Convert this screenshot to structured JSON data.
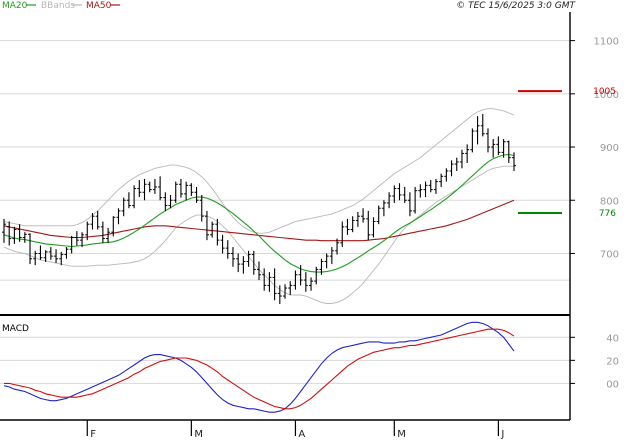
{
  "legend": [
    {
      "label": "MA20",
      "color": "#1e9e1e"
    },
    {
      "label": "BBands",
      "color": "#b8b8b8"
    },
    {
      "label": "MA50",
      "color": "#a31818"
    }
  ],
  "copyright": "© TEC 15/6/2025 3:0 GMT",
  "chart_data": [
    {
      "type": "ohlc",
      "title": "",
      "y_ticks": [
        "1100",
        "1000",
        "900",
        "800",
        "700"
      ],
      "y_tick_values": [
        1100,
        1000,
        900,
        800,
        700
      ],
      "ylim": [
        590,
        1150
      ],
      "x_labels": [
        "F",
        "M",
        "A",
        "M",
        "J"
      ],
      "x_label_index": [
        16,
        36,
        56,
        75,
        95
      ],
      "grid": true,
      "reference_lines": [
        {
          "name": "resistance",
          "value": 1005,
          "label": "1005",
          "color": "#cc0000"
        },
        {
          "name": "support",
          "value": 776,
          "label": "776",
          "color": "#008800"
        }
      ],
      "bars": [
        [
          740,
          765,
          720,
          755
        ],
        [
          750,
          760,
          715,
          728
        ],
        [
          728,
          750,
          718,
          745
        ],
        [
          745,
          755,
          722,
          730
        ],
        [
          730,
          740,
          720,
          736
        ],
        [
          736,
          738,
          680,
          690
        ],
        [
          690,
          705,
          678,
          700
        ],
        [
          700,
          715,
          688,
          692
        ],
        [
          692,
          706,
          684,
          703
        ],
        [
          703,
          712,
          688,
          695
        ],
        [
          695,
          708,
          682,
          690
        ],
        [
          690,
          703,
          678,
          698
        ],
        [
          698,
          712,
          690,
          708
        ],
        [
          708,
          733,
          700,
          730
        ],
        [
          730,
          742,
          715,
          725
        ],
        [
          725,
          740,
          712,
          735
        ],
        [
          735,
          760,
          725,
          755
        ],
        [
          755,
          776,
          745,
          770
        ],
        [
          770,
          780,
          745,
          750
        ],
        [
          750,
          760,
          720,
          728
        ],
        [
          728,
          748,
          720,
          740
        ],
        [
          740,
          770,
          732,
          768
        ],
        [
          768,
          785,
          755,
          780
        ],
        [
          780,
          805,
          770,
          800
        ],
        [
          800,
          815,
          785,
          790
        ],
        [
          790,
          828,
          785,
          822
        ],
        [
          822,
          838,
          806,
          815
        ],
        [
          815,
          840,
          800,
          830
        ],
        [
          830,
          835,
          815,
          820
        ],
        [
          820,
          840,
          812,
          825
        ],
        [
          825,
          845,
          800,
          805
        ],
        [
          805,
          815,
          780,
          790
        ],
        [
          790,
          810,
          785,
          800
        ],
        [
          800,
          835,
          795,
          830
        ],
        [
          830,
          840,
          805,
          812
        ],
        [
          812,
          835,
          800,
          828
        ],
        [
          828,
          832,
          808,
          815
        ],
        [
          815,
          825,
          795,
          800
        ],
        [
          800,
          810,
          760,
          770
        ],
        [
          770,
          780,
          725,
          735
        ],
        [
          735,
          760,
          730,
          755
        ],
        [
          755,
          765,
          715,
          725
        ],
        [
          725,
          735,
          700,
          710
        ],
        [
          710,
          725,
          690,
          700
        ],
        [
          700,
          712,
          675,
          690
        ],
        [
          690,
          700,
          665,
          680
        ],
        [
          680,
          695,
          662,
          685
        ],
        [
          685,
          705,
          675,
          698
        ],
        [
          698,
          705,
          660,
          670
        ],
        [
          670,
          685,
          650,
          660
        ],
        [
          660,
          672,
          630,
          640
        ],
        [
          640,
          665,
          628,
          655
        ],
        [
          655,
          672,
          612,
          625
        ],
        [
          625,
          640,
          605,
          620
        ],
        [
          620,
          642,
          615,
          635
        ],
        [
          635,
          648,
          622,
          640
        ],
        [
          640,
          668,
          632,
          660
        ],
        [
          660,
          678,
          640,
          650
        ],
        [
          650,
          665,
          628,
          640
        ],
        [
          640,
          655,
          630,
          648
        ],
        [
          648,
          675,
          642,
          670
        ],
        [
          670,
          690,
          660,
          685
        ],
        [
          685,
          700,
          672,
          695
        ],
        [
          695,
          712,
          680,
          705
        ],
        [
          705,
          728,
          698,
          720
        ],
        [
          720,
          760,
          712,
          750
        ],
        [
          750,
          765,
          735,
          745
        ],
        [
          745,
          770,
          740,
          762
        ],
        [
          762,
          778,
          750,
          770
        ],
        [
          770,
          785,
          758,
          765
        ],
        [
          765,
          780,
          725,
          735
        ],
        [
          735,
          768,
          730,
          760
        ],
        [
          760,
          790,
          755,
          785
        ],
        [
          785,
          800,
          770,
          795
        ],
        [
          795,
          815,
          785,
          808
        ],
        [
          808,
          828,
          795,
          822
        ],
        [
          822,
          832,
          800,
          810
        ],
        [
          810,
          825,
          795,
          800
        ],
        [
          800,
          815,
          770,
          780
        ],
        [
          780,
          825,
          775,
          818
        ],
        [
          818,
          830,
          805,
          820
        ],
        [
          820,
          835,
          806,
          828
        ],
        [
          828,
          838,
          815,
          820
        ],
        [
          820,
          840,
          812,
          835
        ],
        [
          835,
          850,
          825,
          845
        ],
        [
          845,
          860,
          835,
          855
        ],
        [
          855,
          875,
          845,
          868
        ],
        [
          868,
          880,
          855,
          872
        ],
        [
          872,
          895,
          860,
          888
        ],
        [
          888,
          905,
          870,
          895
        ],
        [
          895,
          935,
          890,
          930
        ],
        [
          930,
          958,
          905,
          940
        ],
        [
          940,
          962,
          920,
          925
        ],
        [
          925,
          935,
          890,
          900
        ],
        [
          900,
          915,
          880,
          905
        ],
        [
          905,
          920,
          885,
          890
        ],
        [
          890,
          915,
          880,
          910
        ],
        [
          910,
          912,
          870,
          880
        ],
        [
          880,
          890,
          855,
          865
        ]
      ],
      "ma20": [
        735,
        732,
        729,
        727,
        726,
        724,
        722,
        720,
        718,
        717,
        716,
        715,
        714,
        713,
        714,
        715,
        716,
        718,
        719,
        720,
        721,
        722,
        725,
        729,
        734,
        740,
        746,
        753,
        760,
        767,
        774,
        780,
        786,
        792,
        796,
        800,
        804,
        806,
        806,
        804,
        800,
        795,
        789,
        782,
        775,
        767,
        759,
        751,
        742,
        733,
        723,
        713,
        704,
        696,
        688,
        681,
        676,
        671,
        668,
        666,
        665,
        665,
        666,
        668,
        671,
        675,
        680,
        686,
        692,
        698,
        705,
        711,
        717,
        724,
        731,
        739,
        746,
        752,
        757,
        763,
        769,
        776,
        782,
        789,
        796,
        803,
        811,
        819,
        828,
        837,
        846,
        855,
        864,
        872,
        878,
        882,
        885,
        886,
        884
      ],
      "ma50": [
        752,
        750,
        748,
        746,
        744,
        742,
        740,
        738,
        736,
        734,
        733,
        732,
        731,
        730,
        730,
        730,
        731,
        732,
        733,
        734,
        736,
        738,
        740,
        742,
        744,
        746,
        748,
        750,
        751,
        752,
        752,
        752,
        751,
        750,
        749,
        748,
        747,
        746,
        745,
        744,
        743,
        742,
        741,
        740,
        739,
        738,
        737,
        736,
        735,
        734,
        733,
        732,
        731,
        730,
        729,
        728,
        727,
        726,
        725,
        725,
        725,
        724,
        724,
        724,
        724,
        724,
        724,
        724,
        724,
        724,
        725,
        726,
        727,
        728,
        730,
        732,
        734,
        736,
        738,
        740,
        742,
        744,
        746,
        748,
        750,
        752,
        755,
        758,
        761,
        764,
        768,
        772,
        776,
        780,
        784,
        788,
        792,
        796,
        800
      ],
      "bb_upper": [
        760,
        758,
        756,
        754,
        752,
        752,
        752,
        752,
        752,
        752,
        752,
        752,
        752,
        752,
        754,
        758,
        764,
        772,
        780,
        790,
        800,
        810,
        820,
        828,
        836,
        842,
        848,
        852,
        856,
        860,
        862,
        864,
        866,
        866,
        864,
        862,
        858,
        852,
        844,
        834,
        822,
        808,
        794,
        780,
        768,
        758,
        750,
        744,
        740,
        738,
        738,
        740,
        744,
        748,
        752,
        756,
        760,
        762,
        764,
        766,
        768,
        770,
        772,
        774,
        778,
        782,
        786,
        790,
        796,
        802,
        810,
        818,
        826,
        834,
        842,
        850,
        856,
        862,
        868,
        874,
        880,
        888,
        896,
        904,
        912,
        920,
        928,
        936,
        944,
        952,
        960,
        966,
        970,
        972,
        972,
        970,
        968,
        964,
        960
      ],
      "bb_lower": [
        712,
        708,
        704,
        702,
        700,
        696,
        692,
        688,
        686,
        684,
        682,
        680,
        678,
        676,
        676,
        676,
        676,
        677,
        678,
        678,
        678,
        679,
        680,
        681,
        682,
        684,
        686,
        690,
        696,
        704,
        714,
        724,
        736,
        748,
        756,
        762,
        768,
        772,
        772,
        770,
        766,
        760,
        752,
        742,
        730,
        718,
        706,
        694,
        682,
        670,
        660,
        650,
        640,
        632,
        626,
        622,
        622,
        622,
        620,
        616,
        612,
        608,
        606,
        606,
        608,
        612,
        618,
        626,
        634,
        644,
        656,
        668,
        680,
        694,
        708,
        722,
        736,
        748,
        756,
        764,
        772,
        780,
        788,
        796,
        802,
        808,
        814,
        820,
        826,
        832,
        838,
        844,
        850,
        856,
        860,
        862,
        864,
        864,
        864
      ],
      "macd": {
        "title": "MACD",
        "y_ticks": [
          "40",
          "20",
          "00"
        ],
        "y_tick_values": [
          40,
          20,
          0
        ],
        "ylim": [
          -30,
          55
        ],
        "macd_line": [
          -2,
          -3,
          -5,
          -6,
          -7,
          -9,
          -11,
          -13,
          -14,
          -15,
          -15,
          -14,
          -13,
          -11,
          -9,
          -7,
          -5,
          -3,
          -1,
          1,
          3,
          5,
          7,
          10,
          13,
          16,
          19,
          22,
          24,
          25,
          25,
          24,
          23,
          22,
          20,
          17,
          14,
          10,
          5,
          0,
          -5,
          -10,
          -14,
          -17,
          -19,
          -20,
          -21,
          -22,
          -22,
          -23,
          -24,
          -25,
          -25,
          -24,
          -22,
          -18,
          -13,
          -7,
          -1,
          5,
          11,
          17,
          22,
          26,
          29,
          31,
          32,
          33,
          34,
          35,
          36,
          36,
          36,
          35,
          35,
          35,
          36,
          36,
          37,
          37,
          38,
          39,
          40,
          41,
          42,
          44,
          46,
          48,
          50,
          52,
          53,
          53,
          52,
          50,
          47,
          44,
          40,
          34,
          28
        ],
        "signal_line": [
          0,
          0,
          -1,
          -2,
          -3,
          -4,
          -6,
          -7,
          -9,
          -10,
          -11,
          -12,
          -12,
          -12,
          -12,
          -11,
          -10,
          -9,
          -7,
          -5,
          -3,
          -1,
          1,
          3,
          5,
          8,
          10,
          13,
          15,
          17,
          19,
          20,
          21,
          22,
          22,
          22,
          21,
          20,
          18,
          16,
          13,
          10,
          6,
          3,
          0,
          -3,
          -6,
          -9,
          -12,
          -14,
          -16,
          -18,
          -20,
          -21,
          -22,
          -22,
          -21,
          -19,
          -16,
          -13,
          -9,
          -5,
          -1,
          3,
          7,
          11,
          15,
          18,
          21,
          23,
          25,
          27,
          28,
          29,
          30,
          31,
          31,
          32,
          33,
          33,
          34,
          35,
          36,
          37,
          38,
          39,
          40,
          41,
          42,
          43,
          44,
          45,
          46,
          47,
          47,
          47,
          46,
          44,
          41
        ]
      }
    }
  ]
}
